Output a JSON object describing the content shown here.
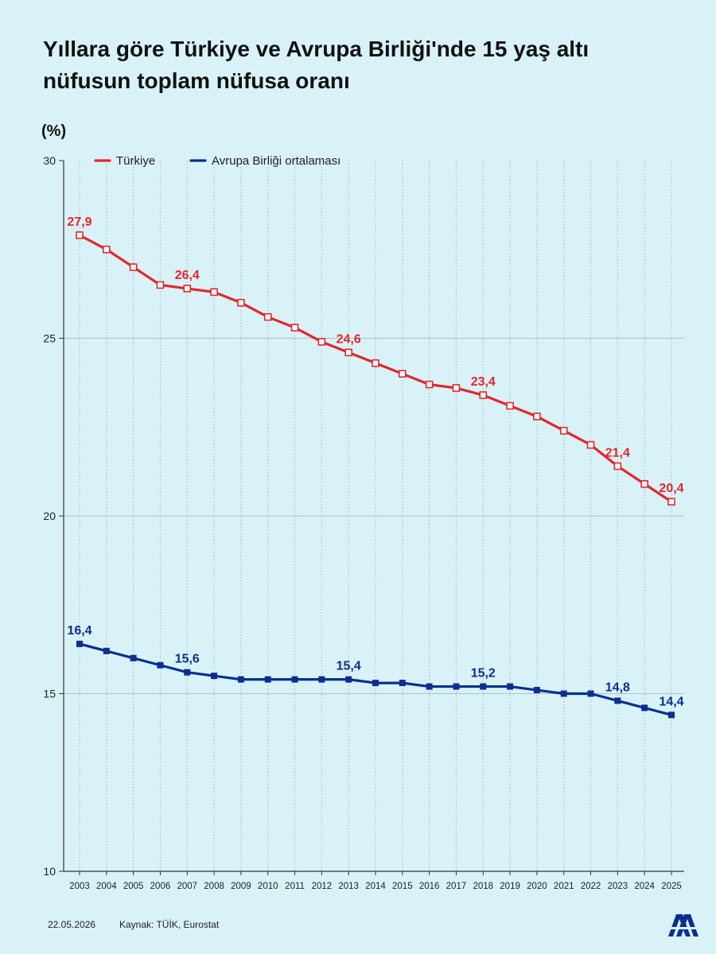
{
  "title": "Yıllara göre Türkiye ve Avrupa Birliği'nde 15 yaş altı nüfusun toplam nüfusa oranı",
  "unit_label": "(%)",
  "footer": {
    "date": "22.05.2026",
    "source": "Kaynak: TÜİK, Eurostat"
  },
  "colors": {
    "background": "#d9f2f7",
    "turkiye": "#e0282e",
    "ab": "#0a2f8f",
    "grid": "#a9c3c9",
    "axis": "#333333"
  },
  "chart_data": {
    "type": "line",
    "title": "Yıllara göre Türkiye ve Avrupa Birliği'nde 15 yaş altı nüfusun toplam nüfusa oranı",
    "xlabel": "",
    "ylabel": "(%)",
    "ylim": [
      10,
      30
    ],
    "yticks": [
      10,
      15,
      20,
      25,
      30
    ],
    "grid": "horizontal",
    "legend_position": "top-left",
    "x": [
      "2003",
      "2004",
      "2005",
      "2006",
      "2007",
      "2008",
      "2009",
      "2010",
      "2011",
      "2012",
      "2013",
      "2014",
      "2015",
      "2016",
      "2017",
      "2018",
      "2019",
      "2020",
      "2021",
      "2022",
      "2023",
      "2024",
      "2025"
    ],
    "series": [
      {
        "name": "Türkiye",
        "color": "#e0282e",
        "marker": "open-square",
        "values": [
          27.9,
          27.5,
          27.0,
          26.5,
          26.4,
          26.3,
          26.0,
          25.6,
          25.3,
          24.9,
          24.6,
          24.3,
          24.0,
          23.7,
          23.6,
          23.4,
          23.1,
          22.8,
          22.4,
          22.0,
          21.4,
          20.9,
          20.4
        ],
        "labeled_points": [
          {
            "x": "2003",
            "text": "27,9"
          },
          {
            "x": "2007",
            "text": "26,4"
          },
          {
            "x": "2013",
            "text": "24,6"
          },
          {
            "x": "2018",
            "text": "23,4"
          },
          {
            "x": "2023",
            "text": "21,4"
          },
          {
            "x": "2025",
            "text": "20,4"
          }
        ]
      },
      {
        "name": "Avrupa Birliği ortalaması",
        "color": "#0a2f8f",
        "marker": "filled-square",
        "values": [
          16.4,
          16.2,
          16.0,
          15.8,
          15.6,
          15.5,
          15.4,
          15.4,
          15.4,
          15.4,
          15.4,
          15.3,
          15.3,
          15.2,
          15.2,
          15.2,
          15.2,
          15.1,
          15.0,
          15.0,
          14.8,
          14.6,
          14.4
        ],
        "labeled_points": [
          {
            "x": "2003",
            "text": "16,4"
          },
          {
            "x": "2007",
            "text": "15,6"
          },
          {
            "x": "2013",
            "text": "15,4"
          },
          {
            "x": "2018",
            "text": "15,2"
          },
          {
            "x": "2023",
            "text": "14,8"
          },
          {
            "x": "2025",
            "text": "14,4"
          }
        ]
      }
    ]
  }
}
